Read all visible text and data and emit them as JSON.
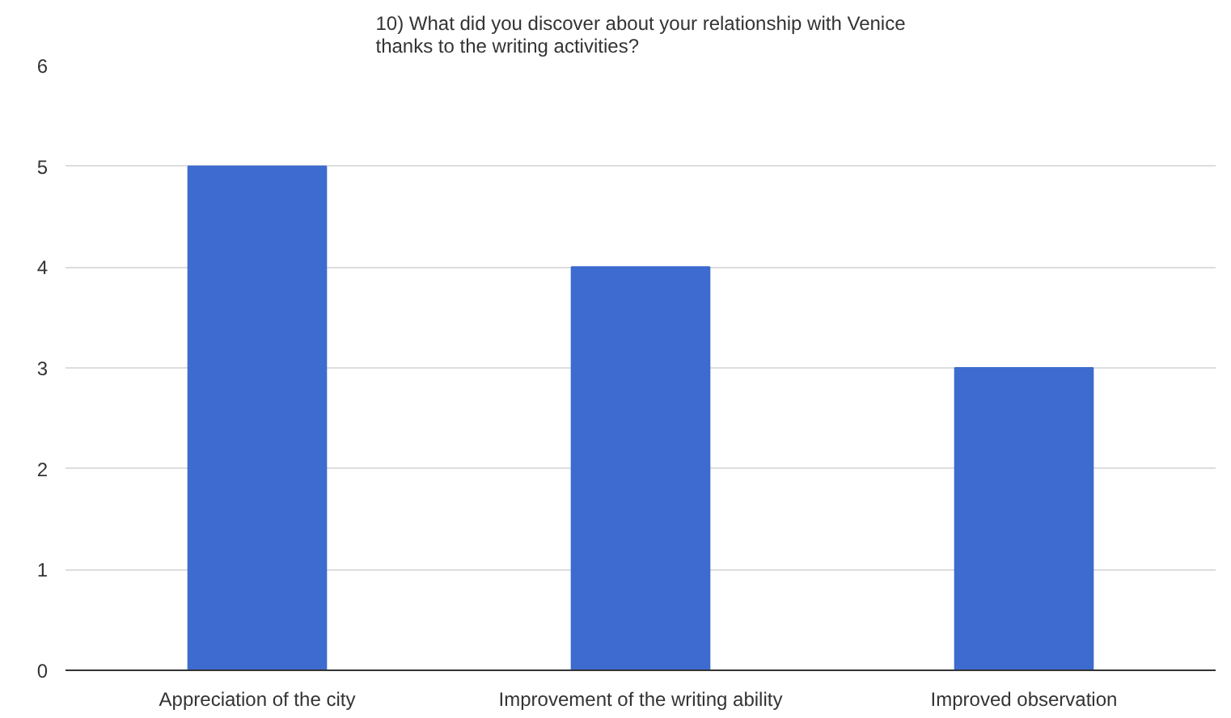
{
  "chart_data": {
    "type": "bar",
    "title": "10) What did you discover about your relationship with Venice\nthanks to the writing activities?",
    "categories": [
      "Appreciation of the city",
      "Improvement of the writing ability",
      "Improved observation"
    ],
    "values": [
      5,
      4,
      3
    ],
    "color": "#3d6bcf",
    "ylim": [
      0,
      6
    ],
    "yticks": [
      0,
      1,
      2,
      3,
      4,
      5,
      6
    ],
    "grid": "y"
  }
}
